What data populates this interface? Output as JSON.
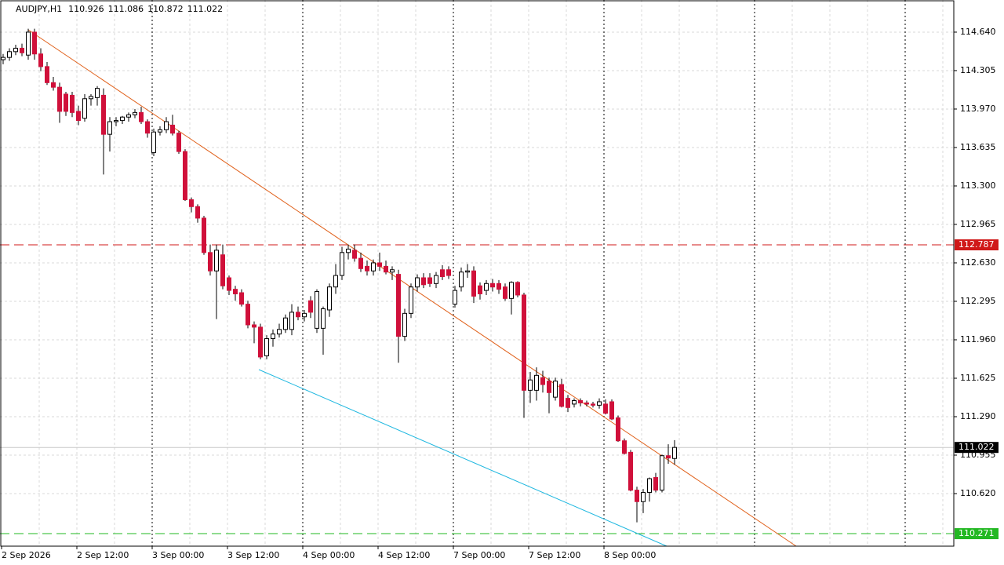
{
  "chart_data": {
    "type": "candlestick",
    "title": "AUDJPY,H1",
    "header_prices": [
      110.926,
      111.086,
      110.872,
      111.022
    ],
    "x": [
      "2 Sep 2026",
      null,
      null,
      null,
      null,
      null,
      null,
      null,
      null,
      null,
      null,
      null,
      "2 Sep 12:00",
      null,
      null,
      null,
      null,
      null,
      null,
      null,
      null,
      null,
      null,
      null,
      "3 Sep 00:00",
      null,
      null,
      null,
      null,
      null,
      null,
      null,
      null,
      null,
      null,
      null,
      "3 Sep 12:00",
      null,
      null,
      null,
      null,
      null,
      null,
      null,
      null,
      null,
      null,
      null,
      "4 Sep 00:00",
      null,
      null,
      null,
      null,
      null,
      null,
      null,
      null,
      null,
      null,
      null,
      "4 Sep 12:00",
      null,
      null,
      null,
      null,
      null,
      null,
      null,
      null,
      null,
      null,
      null,
      "7 Sep 00:00",
      null,
      null,
      null,
      null,
      null,
      null,
      null,
      null,
      null,
      null,
      null,
      "7 Sep 12:00",
      null,
      null,
      null,
      null,
      null,
      null,
      null,
      null,
      null,
      null,
      null,
      "8 Sep 00:00",
      null,
      null,
      null,
      null,
      null,
      null,
      null,
      null,
      null,
      null,
      null
    ],
    "open": [
      114.4,
      114.42,
      114.47,
      114.5,
      114.44,
      114.64,
      114.45,
      114.34,
      114.2,
      114.16,
      114.1,
      114.09,
      113.95,
      113.89,
      114.06,
      114.07,
      114.09,
      113.75,
      113.86,
      113.87,
      113.9,
      113.92,
      113.94,
      113.86,
      113.59,
      113.77,
      113.79,
      113.83,
      113.76,
      113.6,
      113.18,
      113.12,
      113.02,
      112.72,
      112.56,
      112.7,
      112.5,
      112.4,
      112.37,
      112.27,
      112.09,
      112.07,
      111.82,
      111.97,
      112.01,
      112.05,
      112.05,
      112.2,
      112.16,
      112.3,
      112.06,
      112.06,
      112.22,
      112.42,
      112.52,
      112.72,
      112.74,
      112.67,
      112.6,
      112.56,
      112.63,
      112.6,
      112.55,
      112.53,
      111.99,
      112.19,
      112.42,
      112.5,
      112.5,
      112.45,
      112.57,
      112.57,
      112.27,
      112.42,
      112.55,
      112.56,
      112.43,
      112.39,
      112.45,
      112.45,
      112.42,
      112.32,
      112.46,
      112.35,
      111.52,
      111.52,
      111.63,
      111.6,
      111.46,
      111.57,
      111.45,
      111.4,
      111.43,
      111.41,
      111.4,
      111.39,
      111.4,
      111.42,
      111.28,
      111.08,
      110.98,
      110.65,
      110.55,
      110.63,
      110.76,
      110.65,
      110.95,
      110.926
    ],
    "high": [
      114.45,
      114.5,
      114.53,
      114.54,
      114.67,
      114.67,
      114.5,
      114.38,
      114.25,
      114.2,
      114.12,
      114.12,
      114.0,
      114.1,
      114.1,
      114.17,
      114.15,
      113.9,
      113.9,
      113.91,
      113.94,
      113.97,
      113.99,
      113.88,
      113.8,
      113.82,
      113.9,
      113.92,
      113.78,
      113.62,
      113.2,
      113.14,
      113.04,
      112.79,
      112.79,
      112.79,
      112.52,
      112.43,
      112.4,
      112.3,
      112.12,
      112.1,
      112.0,
      112.05,
      112.1,
      112.18,
      112.27,
      112.25,
      112.22,
      112.34,
      112.4,
      112.25,
      112.45,
      112.62,
      112.77,
      112.79,
      112.79,
      112.72,
      112.65,
      112.66,
      112.72,
      112.65,
      112.6,
      112.57,
      112.23,
      112.45,
      112.53,
      112.54,
      112.54,
      112.55,
      112.61,
      112.6,
      112.43,
      112.59,
      112.62,
      112.6,
      112.46,
      112.48,
      112.49,
      112.48,
      112.45,
      112.47,
      112.47,
      112.37,
      111.68,
      111.72,
      111.69,
      111.63,
      111.63,
      111.62,
      111.48,
      111.45,
      111.45,
      111.43,
      111.42,
      111.45,
      111.44,
      111.44,
      111.3,
      111.1,
      111.0,
      110.68,
      110.66,
      110.76,
      110.8,
      110.96,
      111.05,
      111.086
    ],
    "low": [
      114.36,
      114.39,
      114.44,
      114.43,
      114.4,
      114.4,
      114.3,
      114.18,
      114.13,
      113.85,
      113.91,
      113.9,
      113.83,
      113.86,
      114.0,
      114.0,
      113.4,
      113.6,
      113.82,
      113.84,
      113.86,
      113.89,
      113.84,
      113.72,
      113.56,
      113.74,
      113.76,
      113.74,
      113.58,
      113.17,
      113.07,
      112.98,
      112.7,
      112.52,
      112.14,
      112.4,
      112.35,
      112.3,
      112.25,
      112.06,
      111.93,
      111.79,
      111.79,
      111.9,
      111.98,
      112.02,
      112.0,
      112.13,
      112.12,
      112.15,
      112.02,
      111.83,
      112.16,
      112.36,
      112.48,
      112.66,
      112.64,
      112.55,
      112.52,
      112.52,
      112.56,
      112.53,
      112.48,
      111.76,
      111.95,
      112.15,
      112.38,
      112.41,
      112.42,
      112.41,
      112.48,
      112.49,
      112.24,
      112.38,
      112.5,
      112.28,
      112.31,
      112.35,
      112.38,
      112.36,
      112.3,
      112.18,
      112.33,
      111.28,
      111.41,
      111.43,
      111.5,
      111.32,
      111.43,
      111.37,
      111.33,
      111.37,
      111.38,
      111.38,
      111.37,
      111.36,
      111.31,
      111.26,
      111.07,
      110.96,
      110.64,
      110.37,
      110.45,
      110.55,
      110.63,
      110.63,
      110.88,
      110.872
    ],
    "close": [
      114.42,
      114.47,
      114.5,
      114.46,
      114.64,
      114.45,
      114.34,
      114.2,
      114.16,
      113.95,
      113.95,
      113.94,
      113.87,
      114.06,
      114.08,
      114.15,
      113.75,
      113.86,
      113.87,
      113.9,
      113.92,
      113.94,
      113.86,
      113.76,
      113.77,
      113.79,
      113.86,
      113.76,
      113.6,
      113.18,
      113.12,
      113.02,
      112.72,
      112.56,
      112.74,
      112.43,
      112.39,
      112.36,
      112.27,
      112.09,
      112.07,
      111.81,
      111.97,
      112.01,
      112.05,
      112.15,
      112.2,
      112.16,
      112.19,
      112.2,
      112.38,
      112.23,
      112.42,
      112.52,
      112.72,
      112.75,
      112.67,
      112.58,
      112.56,
      112.63,
      112.6,
      112.55,
      112.57,
      111.99,
      112.19,
      112.42,
      112.5,
      112.44,
      112.45,
      112.52,
      112.51,
      112.52,
      112.39,
      112.55,
      112.56,
      112.34,
      112.36,
      112.45,
      112.42,
      112.4,
      112.32,
      112.46,
      112.35,
      111.52,
      111.61,
      111.65,
      111.57,
      111.5,
      111.6,
      111.38,
      111.37,
      111.43,
      111.41,
      111.4,
      111.39,
      111.42,
      111.32,
      111.27,
      111.08,
      110.97,
      110.65,
      110.55,
      110.63,
      110.75,
      110.65,
      110.95,
      110.93,
      111.022
    ],
    "up_color": "#ffffff",
    "down_color": "#d0103a",
    "ylim": [
      110.162,
      114.92
    ],
    "yticks": [
      {
        "value": 114.64,
        "label": "114.640"
      },
      114.305,
      {
        "value": 113.97,
        "label": "113.970"
      },
      113.635,
      {
        "value": 113.3,
        "label": "113.300"
      },
      112.965,
      {
        "value": 112.63,
        "label": "112.630"
      },
      112.295,
      {
        "value": 111.96,
        "label": "111.960"
      },
      111.625,
      {
        "value": 111.29,
        "label": "111.290"
      },
      110.955,
      {
        "value": 110.62,
        "label": "110.620"
      }
    ],
    "grid": true,
    "levels": [
      {
        "value": 112.787,
        "color": "#d01818"
      },
      {
        "value": 110.271,
        "color": "#22b822"
      },
      {
        "value": 111.022,
        "color": "#000000"
      }
    ]
  }
}
